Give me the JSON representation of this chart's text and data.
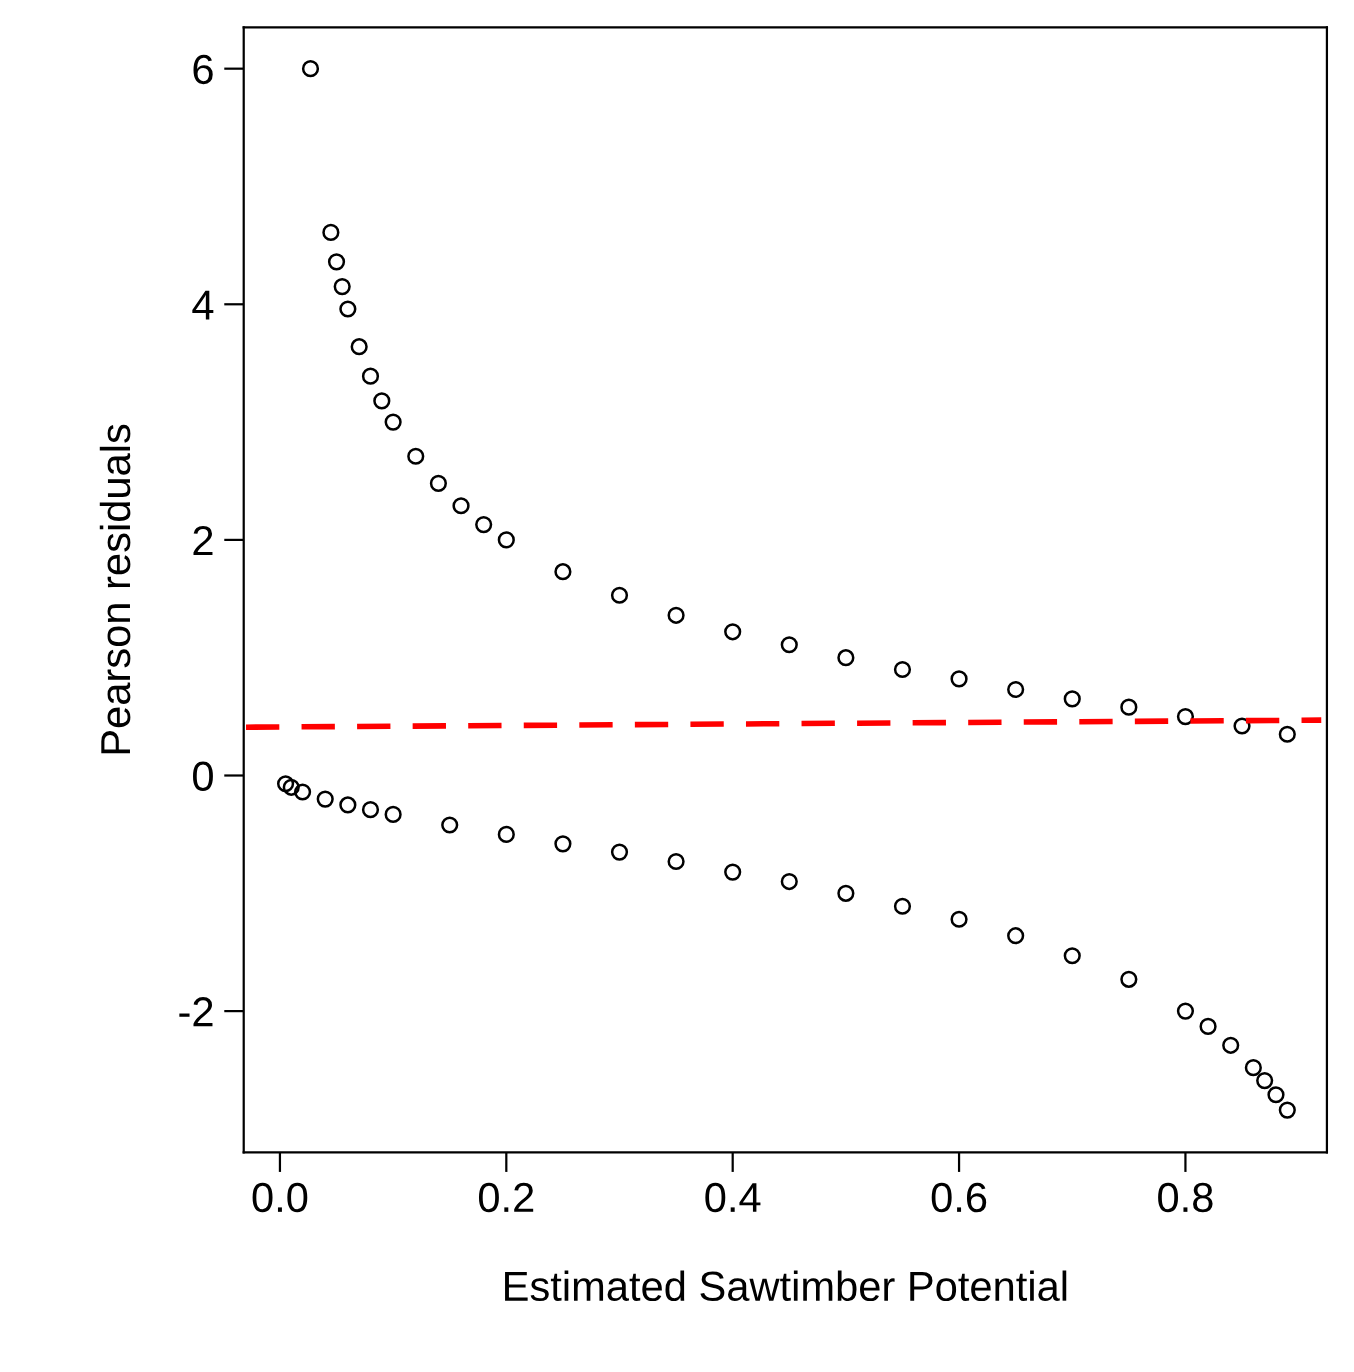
{
  "chart_data": {
    "type": "scatter",
    "xlabel": "Estimated Sawtimber Potential",
    "ylabel": "Pearson residuals",
    "xlim": [
      -0.032,
      0.925
    ],
    "ylim": [
      -3.2,
      6.35
    ],
    "xticks": [
      {
        "value": 0,
        "label": "0.0"
      },
      0.2,
      0.4,
      0.6,
      0.8
    ],
    "yticks": [
      -2,
      0,
      2,
      4,
      6
    ],
    "grid": false,
    "series": [
      {
        "marker": "circle",
        "color": "#000000",
        "x": [
          0.027,
          0.045,
          0.05,
          0.055,
          0.06,
          0.07,
          0.08,
          0.09,
          0.1,
          0.12,
          0.14,
          0.16,
          0.18,
          0.2,
          0.25,
          0.3,
          0.35,
          0.4,
          0.45,
          0.5,
          0.55,
          0.6,
          0.65,
          0.7,
          0.75,
          0.8,
          0.85,
          0.89
        ],
        "values": [
          6.0,
          4.61,
          4.36,
          4.15,
          3.96,
          3.64,
          3.39,
          3.18,
          3.0,
          2.71,
          2.48,
          2.29,
          2.13,
          2.0,
          1.73,
          1.53,
          1.36,
          1.22,
          1.11,
          1.0,
          0.9,
          0.82,
          0.73,
          0.65,
          0.58,
          0.5,
          0.42,
          0.35
        ]
      },
      {
        "marker": "circle",
        "color": "#000000",
        "x": [
          0.005,
          0.01,
          0.02,
          0.04,
          0.06,
          0.08,
          0.1,
          0.15,
          0.2,
          0.25,
          0.3,
          0.35,
          0.4,
          0.45,
          0.5,
          0.55,
          0.6,
          0.65,
          0.7,
          0.75,
          0.8,
          0.82,
          0.84,
          0.86,
          0.87,
          0.88,
          0.89
        ],
        "values": [
          -0.07,
          -0.1,
          -0.14,
          -0.2,
          -0.25,
          -0.29,
          -0.33,
          -0.42,
          -0.5,
          -0.58,
          -0.65,
          -0.73,
          -0.82,
          -0.9,
          -1.0,
          -1.11,
          -1.22,
          -1.36,
          -1.53,
          -1.73,
          -2.0,
          -2.13,
          -2.29,
          -2.48,
          -2.59,
          -2.71,
          -2.84
        ]
      },
      {
        "type": "line",
        "color": "#ff0000",
        "line_style": "dashed",
        "x": [
          -0.03,
          0.92
        ],
        "values": [
          0.41,
          0.47
        ]
      }
    ]
  }
}
